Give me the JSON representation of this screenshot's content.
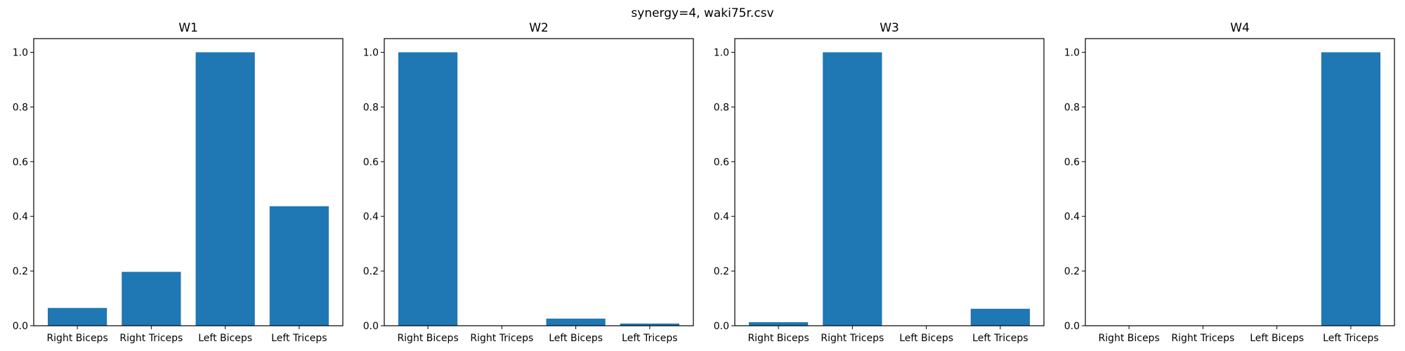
{
  "figure": {
    "suptitle": "synergy=4, waki75r.csv"
  },
  "colors": {
    "bar": "#1f77b4",
    "axis": "#000000"
  },
  "chart_data": [
    {
      "type": "bar",
      "title": "W1",
      "categories": [
        "Right Biceps",
        "Right Triceps",
        "Left Biceps",
        "Left Triceps"
      ],
      "values": [
        0.065,
        0.197,
        1.0,
        0.437
      ],
      "ylim": [
        0,
        1.05
      ],
      "yticks": [
        "0.0",
        "0.2",
        "0.4",
        "0.6",
        "0.8",
        "1.0"
      ],
      "grid": false
    },
    {
      "type": "bar",
      "title": "W2",
      "categories": [
        "Right Biceps",
        "Right Triceps",
        "Left Biceps",
        "Left Triceps"
      ],
      "values": [
        1.0,
        0.0,
        0.026,
        0.008
      ],
      "ylim": [
        0,
        1.05
      ],
      "yticks": [
        "0.0",
        "0.2",
        "0.4",
        "0.6",
        "0.8",
        "1.0"
      ],
      "grid": false
    },
    {
      "type": "bar",
      "title": "W3",
      "categories": [
        "Right Biceps",
        "Right Triceps",
        "Left Biceps",
        "Left Triceps"
      ],
      "values": [
        0.013,
        1.0,
        0.0,
        0.062
      ],
      "ylim": [
        0,
        1.05
      ],
      "yticks": [
        "0.0",
        "0.2",
        "0.4",
        "0.6",
        "0.8",
        "1.0"
      ],
      "grid": false
    },
    {
      "type": "bar",
      "title": "W4",
      "categories": [
        "Right Biceps",
        "Right Triceps",
        "Left Biceps",
        "Left Triceps"
      ],
      "values": [
        0.0,
        0.0,
        0.0,
        1.0
      ],
      "ylim": [
        0,
        1.05
      ],
      "yticks": [
        "0.0",
        "0.2",
        "0.4",
        "0.6",
        "0.8",
        "1.0"
      ],
      "grid": false
    }
  ]
}
